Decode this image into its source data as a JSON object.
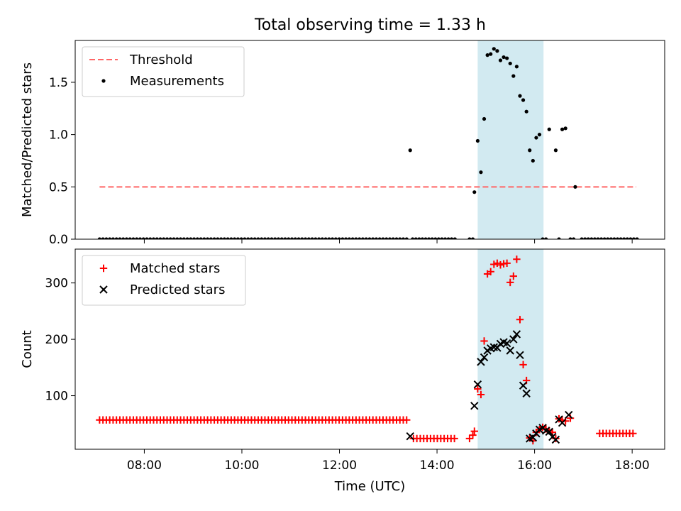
{
  "figure": {
    "title": "Total observing time = 1.33 h"
  },
  "colors": {
    "band": "#add8e6",
    "threshold": "#ff6666",
    "measurement": "#000000",
    "matched": "#ff0000",
    "predicted": "#000000"
  },
  "chart_data": [
    {
      "type": "scatter",
      "ylabel": "Matched/Predicted stars",
      "xlim": [
        "06:35",
        "18:40"
      ],
      "ylim": [
        0,
        1.9
      ],
      "yticks": [
        0.0,
        0.5,
        1.0,
        1.5
      ],
      "ytick_labels": [
        "0.0",
        "0.5",
        "1.0",
        "1.5"
      ],
      "xticks": [
        "08:00",
        "10:00",
        "12:00",
        "14:00",
        "16:00",
        "18:00"
      ],
      "show_xtick_labels": false,
      "legend_position": "top-left",
      "highlight_band": {
        "start": "14:50",
        "end": "16:11"
      },
      "series": [
        {
          "name": "Threshold",
          "kind": "line",
          "dashed": true,
          "points": [
            [
              "07:05",
              0.5
            ],
            [
              "18:05",
              0.5
            ]
          ]
        },
        {
          "name": "Measurements",
          "kind": "dot",
          "zeros_from": "07:05",
          "zeros_to": "13:25",
          "zeros_step_min": 4.15,
          "points": [
            [
              "13:27",
              0.85
            ],
            [
              "13:30",
              0
            ],
            [
              "13:34",
              0
            ],
            [
              "13:38",
              0
            ],
            [
              "13:42",
              0
            ],
            [
              "13:46",
              0
            ],
            [
              "13:50",
              0
            ],
            [
              "13:54",
              0
            ],
            [
              "13:58",
              0
            ],
            [
              "14:02",
              0
            ],
            [
              "14:06",
              0
            ],
            [
              "14:10",
              0
            ],
            [
              "14:14",
              0
            ],
            [
              "14:18",
              0
            ],
            [
              "14:22",
              0
            ],
            [
              "14:40",
              0
            ],
            [
              "14:44",
              0
            ],
            [
              "14:46",
              0.45
            ],
            [
              "14:50",
              0.94
            ],
            [
              "14:54",
              0.64
            ],
            [
              "14:58",
              1.15
            ],
            [
              "15:02",
              1.76
            ],
            [
              "15:06",
              1.77
            ],
            [
              "15:10",
              1.82
            ],
            [
              "15:14",
              1.8
            ],
            [
              "15:18",
              1.71
            ],
            [
              "15:22",
              1.74
            ],
            [
              "15:26",
              1.73
            ],
            [
              "15:30",
              1.68
            ],
            [
              "15:34",
              1.56
            ],
            [
              "15:38",
              1.65
            ],
            [
              "15:42",
              1.37
            ],
            [
              "15:46",
              1.33
            ],
            [
              "15:50",
              1.22
            ],
            [
              "15:54",
              0.85
            ],
            [
              "15:58",
              0.75
            ],
            [
              "16:02",
              0.97
            ],
            [
              "16:06",
              1.0
            ],
            [
              "16:10",
              0
            ],
            [
              "16:14",
              0
            ],
            [
              "16:18",
              1.05
            ],
            [
              "16:26",
              0.85
            ],
            [
              "16:30",
              0
            ],
            [
              "16:34",
              1.05
            ],
            [
              "16:38",
              1.06
            ],
            [
              "16:44",
              0
            ],
            [
              "16:48",
              0
            ],
            [
              "16:50",
              0.5
            ],
            [
              "16:58",
              0
            ],
            [
              "17:02",
              0
            ],
            [
              "17:06",
              0
            ],
            [
              "17:10",
              0
            ],
            [
              "17:14",
              0
            ],
            [
              "17:18",
              0
            ],
            [
              "17:22",
              0
            ],
            [
              "17:26",
              0
            ],
            [
              "17:30",
              0
            ],
            [
              "17:34",
              0
            ],
            [
              "17:38",
              0
            ],
            [
              "17:42",
              0
            ],
            [
              "17:46",
              0
            ],
            [
              "17:50",
              0
            ],
            [
              "17:54",
              0
            ],
            [
              "17:58",
              0
            ],
            [
              "18:02",
              0
            ],
            [
              "18:06",
              0
            ]
          ]
        }
      ]
    },
    {
      "type": "scatter",
      "xlabel": "Time (UTC)",
      "ylabel": "Count",
      "xlim": [
        "06:35",
        "18:40"
      ],
      "ylim": [
        5,
        360
      ],
      "yticks": [
        100,
        200,
        300
      ],
      "ytick_labels": [
        "100",
        "200",
        "300"
      ],
      "xticks": [
        "08:00",
        "10:00",
        "12:00",
        "14:00",
        "16:00",
        "18:00"
      ],
      "xtick_labels": [
        "08:00",
        "10:00",
        "12:00",
        "14:00",
        "16:00",
        "18:00"
      ],
      "legend_position": "top-left",
      "highlight_band": {
        "start": "14:50",
        "end": "16:11"
      },
      "series": [
        {
          "name": "Matched stars",
          "kind": "plus",
          "constant_runs": [
            {
              "from": "07:05",
              "to": "13:25",
              "step_min": 4.15,
              "value": 57
            },
            {
              "from": "13:31",
              "to": "14:22",
              "step_min": 4.2,
              "value": 24
            },
            {
              "from": "17:20",
              "to": "18:05",
              "step_min": 4.1,
              "value": 33
            }
          ],
          "points": [
            [
              "14:40",
              24
            ],
            [
              "14:44",
              30
            ],
            [
              "14:46",
              37
            ],
            [
              "14:50",
              112
            ],
            [
              "14:54",
              102
            ],
            [
              "14:58",
              197
            ],
            [
              "15:02",
              316
            ],
            [
              "15:06",
              320
            ],
            [
              "15:10",
              333
            ],
            [
              "15:14",
              335
            ],
            [
              "15:18",
              332
            ],
            [
              "15:22",
              334
            ],
            [
              "15:26",
              335
            ],
            [
              "15:30",
              301
            ],
            [
              "15:34",
              312
            ],
            [
              "15:38",
              342
            ],
            [
              "15:42",
              235
            ],
            [
              "15:46",
              155
            ],
            [
              "15:50",
              127
            ],
            [
              "15:54",
              25
            ],
            [
              "15:58",
              20
            ],
            [
              "16:02",
              35
            ],
            [
              "16:06",
              40
            ],
            [
              "16:10",
              44
            ],
            [
              "16:14",
              41
            ],
            [
              "16:18",
              38
            ],
            [
              "16:22",
              35
            ],
            [
              "16:26",
              24
            ],
            [
              "16:30",
              59
            ],
            [
              "16:34",
              57
            ],
            [
              "16:38",
              55
            ],
            [
              "16:44",
              60
            ]
          ]
        },
        {
          "name": "Predicted stars",
          "kind": "x",
          "points": [
            [
              "13:27",
              28
            ],
            [
              "14:46",
              82
            ],
            [
              "14:50",
              120
            ],
            [
              "14:54",
              160
            ],
            [
              "14:58",
              168
            ],
            [
              "15:02",
              180
            ],
            [
              "15:06",
              184
            ],
            [
              "15:10",
              186
            ],
            [
              "15:14",
              185
            ],
            [
              "15:18",
              192
            ],
            [
              "15:22",
              195
            ],
            [
              "15:26",
              193
            ],
            [
              "15:30",
              180
            ],
            [
              "15:34",
              200
            ],
            [
              "15:38",
              209
            ],
            [
              "15:42",
              172
            ],
            [
              "15:46",
              118
            ],
            [
              "15:50",
              104
            ],
            [
              "15:54",
              24
            ],
            [
              "15:58",
              26
            ],
            [
              "16:02",
              33
            ],
            [
              "16:06",
              40
            ],
            [
              "16:10",
              43
            ],
            [
              "16:14",
              38
            ],
            [
              "16:18",
              36
            ],
            [
              "16:22",
              27
            ],
            [
              "16:26",
              22
            ],
            [
              "16:30",
              58
            ],
            [
              "16:34",
              52
            ],
            [
              "16:42",
              66
            ]
          ]
        }
      ]
    }
  ]
}
